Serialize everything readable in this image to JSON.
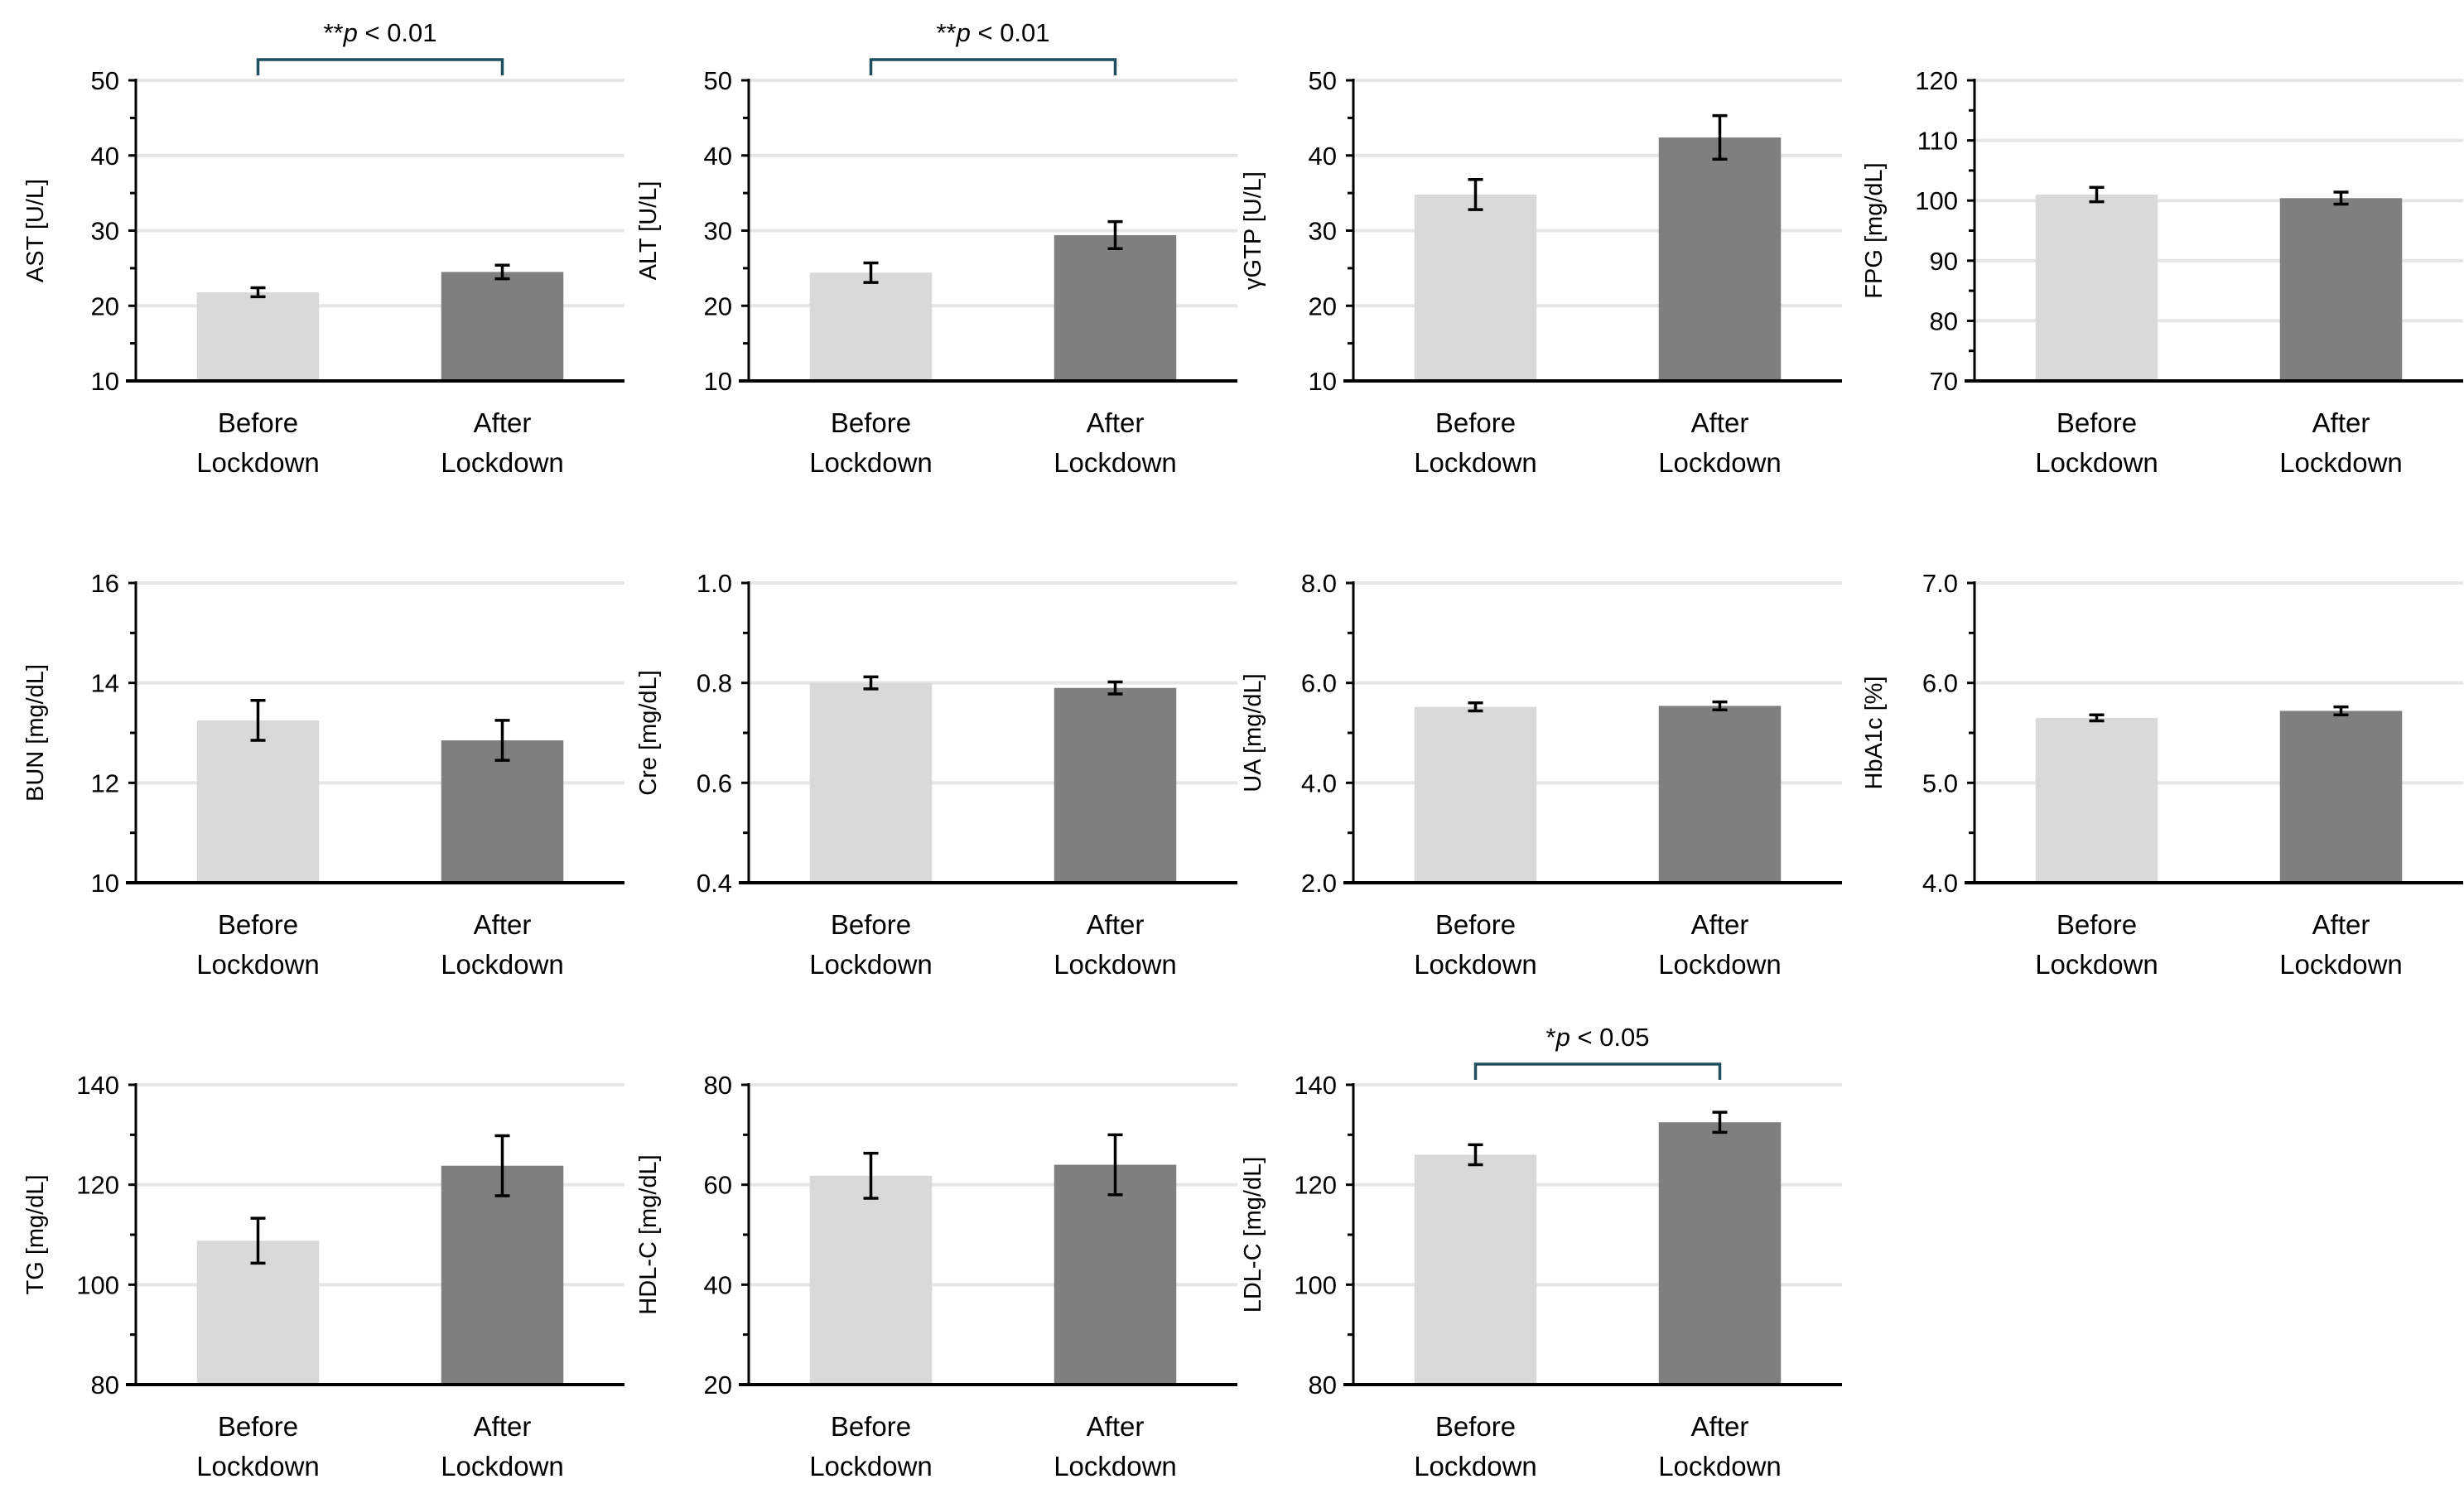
{
  "chart_data": [
    {
      "type": "bar",
      "ylabel": "AST [U/L]",
      "ylim": [
        10,
        50
      ],
      "major": 10,
      "minor": 5,
      "categories": [
        "Before Lockdown",
        "After Lockdown"
      ],
      "values": [
        21.8,
        24.5
      ],
      "errors": [
        0.6,
        0.9
      ],
      "decimals": 0,
      "significance": {
        "stars": "**",
        "p": "p",
        "text": " < 0.01"
      }
    },
    {
      "type": "bar",
      "ylabel": "ALT [U/L]",
      "ylim": [
        10,
        50
      ],
      "major": 10,
      "minor": 5,
      "categories": [
        "Before Lockdown",
        "After Lockdown"
      ],
      "values": [
        24.4,
        29.4
      ],
      "errors": [
        1.3,
        1.8
      ],
      "decimals": 0,
      "significance": {
        "stars": "**",
        "p": "p",
        "text": " < 0.01"
      }
    },
    {
      "type": "bar",
      "ylabel": "γGTP [U/L]",
      "ylim": [
        10,
        50
      ],
      "major": 10,
      "minor": 5,
      "categories": [
        "Before Lockdown",
        "After Lockdown"
      ],
      "values": [
        34.8,
        42.4
      ],
      "errors": [
        2.0,
        2.9
      ],
      "decimals": 0
    },
    {
      "type": "bar",
      "ylabel": "FPG [mg/dL]",
      "ylim": [
        70,
        120
      ],
      "major": 10,
      "minor": 5,
      "categories": [
        "Before Lockdown",
        "After Lockdown"
      ],
      "values": [
        101.0,
        100.4
      ],
      "errors": [
        1.2,
        1.0
      ],
      "decimals": 0
    },
    {
      "type": "bar",
      "ylabel": "BUN [mg/dL]",
      "ylim": [
        10,
        16
      ],
      "major": 2,
      "minor": 1,
      "categories": [
        "Before Lockdown",
        "After Lockdown"
      ],
      "values": [
        13.25,
        12.85
      ],
      "errors": [
        0.4,
        0.4
      ],
      "decimals": 0
    },
    {
      "type": "bar",
      "ylabel": "Cre [mg/dL]",
      "ylim": [
        0.4,
        1.0
      ],
      "major": 0.2,
      "minor": 0.1,
      "categories": [
        "Before Lockdown",
        "After Lockdown"
      ],
      "values": [
        0.8,
        0.79
      ],
      "errors": [
        0.012,
        0.012
      ],
      "decimals": 1
    },
    {
      "type": "bar",
      "ylabel": "UA [mg/dL]",
      "ylim": [
        2.0,
        8.0
      ],
      "major": 2,
      "minor": 1,
      "categories": [
        "Before Lockdown",
        "After Lockdown"
      ],
      "values": [
        5.52,
        5.54
      ],
      "errors": [
        0.08,
        0.08
      ],
      "decimals": 1
    },
    {
      "type": "bar",
      "ylabel": "HbA1c [%]",
      "ylim": [
        4.0,
        7.0
      ],
      "major": 1,
      "minor": 0.5,
      "categories": [
        "Before Lockdown",
        "After Lockdown"
      ],
      "values": [
        5.65,
        5.72
      ],
      "errors": [
        0.03,
        0.04
      ],
      "decimals": 1
    },
    {
      "type": "bar",
      "ylabel": "TG [mg/dL]",
      "ylim": [
        80,
        140
      ],
      "major": 20,
      "minor": 10,
      "categories": [
        "Before Lockdown",
        "After Lockdown"
      ],
      "values": [
        108.8,
        123.8
      ],
      "errors": [
        4.5,
        6.0
      ],
      "decimals": 0
    },
    {
      "type": "bar",
      "ylabel": "HDL-C [mg/dL]",
      "ylim": [
        20,
        80
      ],
      "major": 20,
      "minor": 10,
      "categories": [
        "Before Lockdown",
        "After Lockdown"
      ],
      "values": [
        61.8,
        64.0
      ],
      "errors": [
        4.5,
        6.0
      ],
      "decimals": 0
    },
    {
      "type": "bar",
      "ylabel": "LDL-C [mg/dL]",
      "ylim": [
        80,
        140
      ],
      "major": 20,
      "minor": 10,
      "categories": [
        "Before Lockdown",
        "After Lockdown"
      ],
      "values": [
        126.0,
        132.5
      ],
      "errors": [
        2.0,
        2.0
      ],
      "decimals": 0,
      "significance": {
        "stars": "*",
        "p": "p",
        "text": " < 0.05"
      }
    }
  ],
  "colors": {
    "before": "#d9d9d9",
    "after": "#7f7f7f",
    "grid": "#e6e6e6",
    "bracket": "#1f4e5f"
  }
}
